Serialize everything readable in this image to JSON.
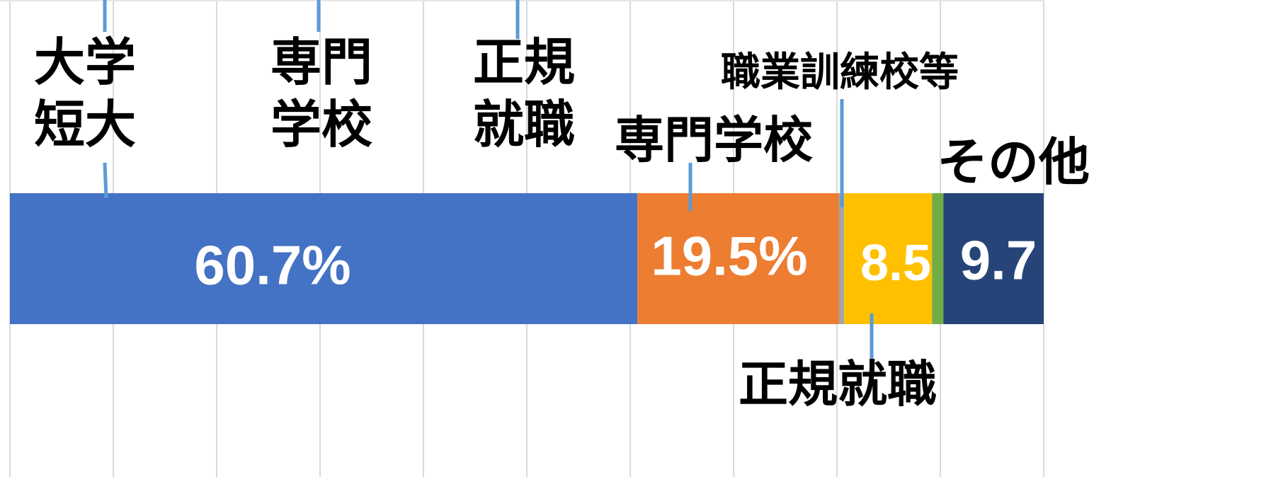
{
  "chart_data": {
    "type": "stacked-bar",
    "orientation": "horizontal",
    "series": [
      {
        "name": "大学短大",
        "color": "#4472c4",
        "values": [
          60.7
        ],
        "value_labels": [
          "60.7%"
        ]
      },
      {
        "name": "専門学校",
        "color": "#ed7d31",
        "values": [
          19.5
        ],
        "value_labels": [
          "19.5%"
        ]
      },
      {
        "name": "職業訓練校等",
        "color": "#a5a5a5",
        "values": [
          0.5
        ],
        "value_labels": [
          null
        ]
      },
      {
        "name": "正規就職",
        "color": "#ffc000",
        "values": [
          8.5
        ],
        "value_labels": [
          "8.5"
        ]
      },
      {
        "name": null,
        "color": "#70ad47",
        "values": [
          1.1
        ],
        "value_labels": [
          null
        ]
      },
      {
        "name": "その他",
        "color": "#264478",
        "values": [
          9.7
        ],
        "value_labels": [
          "9.7"
        ]
      }
    ],
    "annotations": [
      "専門学校",
      "正規就職"
    ],
    "xlim": [
      0,
      100
    ],
    "xticks": [
      0,
      10,
      20,
      30,
      40,
      50,
      60,
      70,
      80,
      90,
      100
    ],
    "grid": true
  }
}
